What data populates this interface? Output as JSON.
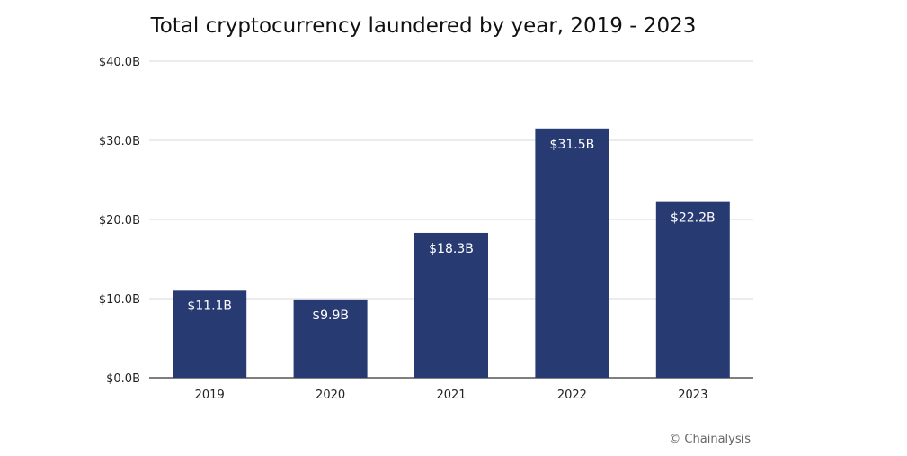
{
  "chart_data": {
    "type": "bar",
    "title": "Total cryptocurrency laundered by year, 2019 - 2023",
    "categories": [
      "2019",
      "2020",
      "2021",
      "2022",
      "2023"
    ],
    "values": [
      11.1,
      9.9,
      18.3,
      31.5,
      22.2
    ],
    "data_labels": [
      "$11.1B",
      "$9.9B",
      "$18.3B",
      "$31.5B",
      "$22.2B"
    ],
    "yticks": [
      0,
      10,
      20,
      30,
      40
    ],
    "ytick_labels": [
      "$0.0B",
      "$10.0B",
      "$20.0B",
      "$30.0B",
      "$40.0B"
    ],
    "ylim": [
      0,
      40
    ],
    "xlabel": "",
    "ylabel": "",
    "grid": true,
    "bar_color": "#283a72",
    "grid_color": "#d9d9d9",
    "source": "© Chainalysis"
  }
}
